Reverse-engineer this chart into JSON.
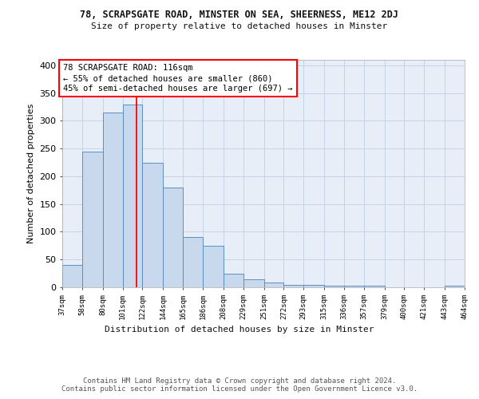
{
  "title": "78, SCRAPSGATE ROAD, MINSTER ON SEA, SHEERNESS, ME12 2DJ",
  "subtitle": "Size of property relative to detached houses in Minster",
  "xlabel": "Distribution of detached houses by size in Minster",
  "ylabel": "Number of detached properties",
  "bin_edges": [
    37,
    58,
    80,
    101,
    122,
    144,
    165,
    186,
    208,
    229,
    251,
    272,
    293,
    315,
    336,
    357,
    379,
    400,
    421,
    443,
    464
  ],
  "bin_heights": [
    40,
    245,
    315,
    330,
    225,
    180,
    90,
    75,
    25,
    15,
    8,
    5,
    5,
    3,
    3,
    3,
    0,
    0,
    0,
    3
  ],
  "bar_color": "#c8d8ed",
  "bar_edge_color": "#5b8ec4",
  "grid_color": "#c5d2e5",
  "background_color": "#e8eef7",
  "red_line_x": 116,
  "annotation_text": "78 SCRAPSGATE ROAD: 116sqm\n← 55% of detached houses are smaller (860)\n45% of semi-detached houses are larger (697) →",
  "ylim": [
    0,
    410
  ],
  "yticks": [
    0,
    50,
    100,
    150,
    200,
    250,
    300,
    350,
    400
  ],
  "tick_labels": [
    "37sqm",
    "58sqm",
    "80sqm",
    "101sqm",
    "122sqm",
    "144sqm",
    "165sqm",
    "186sqm",
    "208sqm",
    "229sqm",
    "251sqm",
    "272sqm",
    "293sqm",
    "315sqm",
    "336sqm",
    "357sqm",
    "379sqm",
    "400sqm",
    "421sqm",
    "443sqm",
    "464sqm"
  ],
  "footer_text": "Contains HM Land Registry data © Crown copyright and database right 2024.\nContains public sector information licensed under the Open Government Licence v3.0."
}
